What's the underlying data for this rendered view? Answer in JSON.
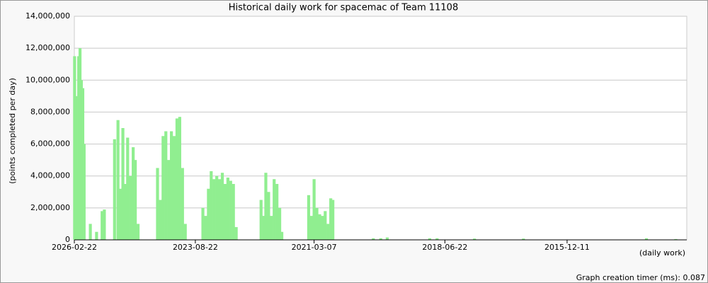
{
  "chart_data": {
    "type": "bar",
    "title": "Historical daily work for spacemac of Team 11108",
    "y_label": "(points completed per day)",
    "x_label": "(daily work)",
    "footer": "Graph creation timer (ms): 0.087",
    "color": "#90ee90",
    "grid": true,
    "xlim": [
      "2026-02-22",
      "2013-06-19"
    ],
    "xticks": [
      "2026-02-22",
      "2023-08-22",
      "2021-03-07",
      "2018-06-22",
      "2015-12-11"
    ],
    "ylim": [
      0,
      14000000
    ],
    "yticks": [
      0,
      {
        "value": 2000000,
        "label": "2,000,000"
      },
      {
        "value": 4000000,
        "label": "4,000,000"
      },
      {
        "value": 6000000,
        "label": "6,000,000"
      },
      {
        "value": 8000000,
        "label": "8,000,000"
      },
      {
        "value": 10000000,
        "label": "10,000,000"
      },
      {
        "value": 12000000,
        "label": "12,000,000"
      },
      {
        "value": 14000000,
        "label": "14,000,000"
      }
    ],
    "x": [
      "2026-02-20",
      "2026-02-10",
      "2026-01-31",
      "2026-01-20",
      "2026-01-10",
      "2025-12-31",
      "2025-12-20",
      "2025-12-10",
      "2025-10-24",
      "2025-09-07",
      "2025-07-27",
      "2025-07-10",
      "2025-04-24",
      "2025-03-29",
      "2025-03-08",
      "2025-02-20",
      "2025-02-04",
      "2025-01-15",
      "2024-12-25",
      "2024-12-04",
      "2024-11-18",
      "2024-10-28",
      "2024-06-03",
      "2024-05-13",
      "2024-04-22",
      "2024-04-01",
      "2024-03-11",
      "2024-02-19",
      "2024-01-29",
      "2024-01-08",
      "2023-12-18",
      "2023-11-27",
      "2023-11-06",
      "2023-06-26",
      "2023-06-05",
      "2023-05-15",
      "2023-04-24",
      "2023-04-03",
      "2023-03-13",
      "2023-02-20",
      "2023-01-30",
      "2023-01-09",
      "2022-12-19",
      "2022-11-28",
      "2022-11-07",
      "2022-10-17",
      "2022-04-12",
      "2022-03-22",
      "2022-03-07",
      "2022-02-14",
      "2022-01-24",
      "2022-01-03",
      "2021-12-13",
      "2021-11-22",
      "2021-11-06",
      "2021-04-17",
      "2021-03-27",
      "2021-03-07",
      "2021-02-14",
      "2021-01-24",
      "2021-01-03",
      "2020-12-13",
      "2020-11-22",
      "2020-11-01",
      "2020-10-16",
      "2019-12-15",
      "2019-10-20",
      "2019-09-01",
      "2018-10-15",
      "2018-08-20",
      "2017-11-10",
      "2016-11-05",
      "2014-04-20",
      "2013-09-10"
    ],
    "values": [
      11500000,
      9000000,
      4500000,
      11500000,
      12000000,
      10000000,
      9500000,
      6000000,
      1000000,
      500000,
      1800000,
      1900000,
      6300000,
      7500000,
      3200000,
      7000000,
      3500000,
      6400000,
      4000000,
      5800000,
      5000000,
      1000000,
      4500000,
      2500000,
      6500000,
      6800000,
      5000000,
      6800000,
      6500000,
      7600000,
      7700000,
      4500000,
      1000000,
      2000000,
      1500000,
      3200000,
      4300000,
      3800000,
      4000000,
      3800000,
      4200000,
      3500000,
      3900000,
      3700000,
      3500000,
      800000,
      2500000,
      1500000,
      4200000,
      3000000,
      1500000,
      3800000,
      3500000,
      2000000,
      500000,
      2800000,
      1500000,
      3800000,
      2000000,
      1600000,
      1500000,
      1800000,
      1000000,
      2600000,
      2500000,
      100000,
      100000,
      150000,
      100000,
      100000,
      80000,
      80000,
      100000,
      50000
    ]
  }
}
